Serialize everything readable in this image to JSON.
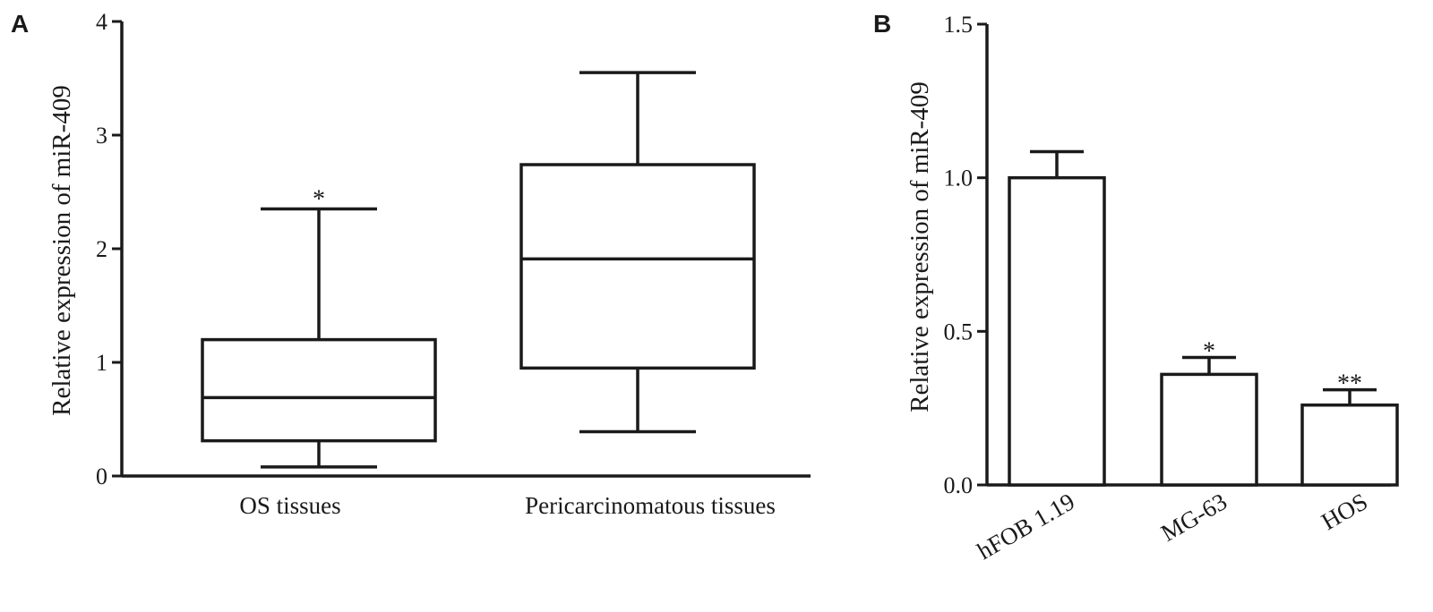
{
  "chart_data": [
    {
      "panel": "A",
      "type": "box",
      "ylabel": "Relative expression of miR-409",
      "ylim": [
        0,
        4
      ],
      "yticks": [
        "0",
        "1",
        "2",
        "3",
        "4"
      ],
      "categories": [
        "OS tissues",
        "Pericarcinomatous tissues"
      ],
      "boxes": [
        {
          "min": 0.08,
          "q1": 0.31,
          "median": 0.69,
          "q3": 1.2,
          "max": 2.35,
          "annotation": "*"
        },
        {
          "min": 0.39,
          "q1": 0.95,
          "median": 1.91,
          "q3": 2.74,
          "max": 3.55,
          "annotation": ""
        }
      ]
    },
    {
      "panel": "B",
      "type": "bar",
      "ylabel": "Relative expression of miR-409",
      "ylim": [
        0,
        1.5
      ],
      "yticks": [
        "0.0",
        "0.5",
        "1.0",
        "1.5"
      ],
      "categories": [
        "hFOB 1.19",
        "MG-63",
        "HOS"
      ],
      "values": [
        1.0,
        0.36,
        0.26
      ],
      "errors": [
        0.085,
        0.055,
        0.05
      ],
      "annotations": [
        "",
        "*",
        "**"
      ]
    }
  ]
}
